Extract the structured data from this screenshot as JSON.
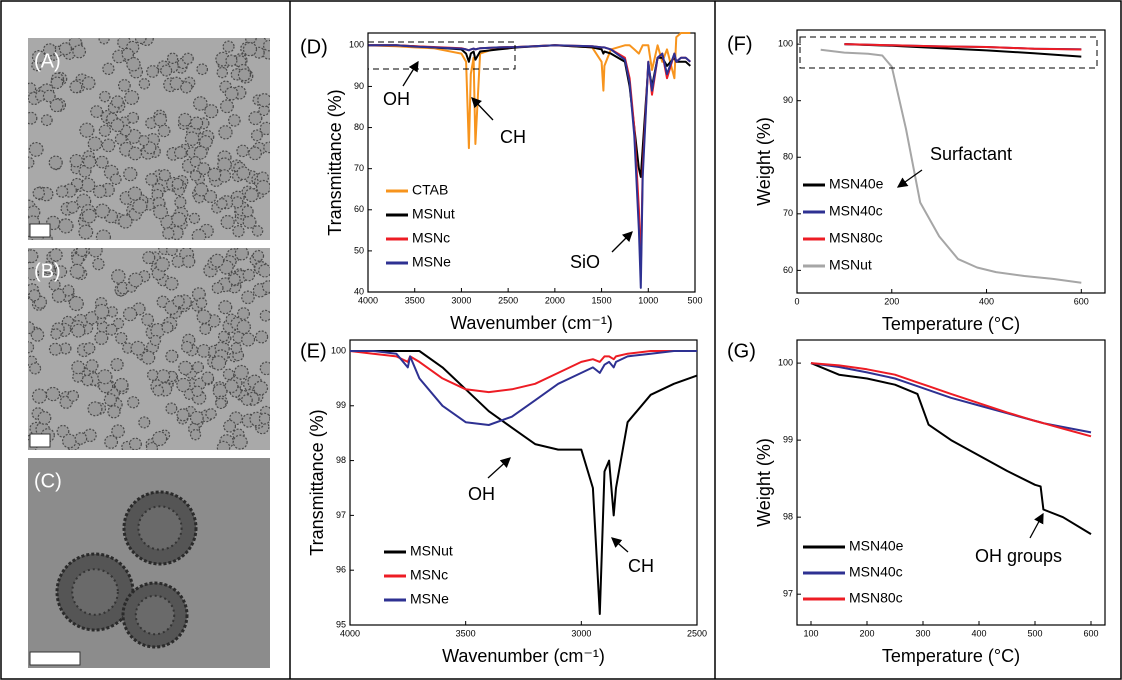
{
  "images": [
    {
      "label": "(A)"
    },
    {
      "label": "(B)"
    },
    {
      "label": "(C)"
    }
  ],
  "chart_data": [
    {
      "type": "line",
      "panel": "(D)",
      "xlabel": "Wavenumber (cm⁻¹)",
      "ylabel": "Transmittance (%)",
      "xlim": [
        4000,
        500
      ],
      "ylim": [
        40,
        103
      ],
      "xticks": [
        4000,
        3500,
        3000,
        2500,
        2000,
        1500,
        1000,
        500
      ],
      "yticks": [
        40,
        50,
        60,
        70,
        80,
        90,
        100
      ],
      "annotations": [
        "OH",
        "CH",
        "SiO"
      ],
      "x": [
        4000,
        3700,
        3500,
        3300,
        3000,
        2950,
        2920,
        2900,
        2870,
        2850,
        2800,
        2600,
        2400,
        2000,
        1600,
        1500,
        1480,
        1470,
        1400,
        1250,
        1200,
        1150,
        1100,
        1080,
        1060,
        1000,
        960,
        900,
        850,
        800,
        720,
        700,
        650,
        600,
        550
      ],
      "series": [
        {
          "name": "CTAB",
          "color": "#f7941d",
          "values": [
            100,
            99.8,
            99.5,
            99.3,
            98,
            96,
            75,
            93,
            97,
            76,
            98,
            99.5,
            99.6,
            100,
            99.5,
            96,
            89,
            95,
            99,
            100,
            100,
            99,
            98,
            99,
            100,
            100,
            94,
            100,
            96,
            99,
            92,
            102,
            103,
            103,
            103
          ]
        },
        {
          "name": "MSNut",
          "color": "#000000",
          "values": [
            100,
            100,
            99.8,
            99.5,
            99,
            98,
            96,
            98,
            98.5,
            96.5,
            98.5,
            99,
            99.5,
            100,
            99.5,
            99,
            98,
            98.5,
            98,
            96,
            90,
            80,
            70,
            68,
            75,
            95,
            90,
            97,
            97,
            95,
            97,
            96,
            96,
            96,
            95
          ]
        },
        {
          "name": "MSNc",
          "color": "#ed1c24",
          "values": [
            100,
            100,
            99.8,
            99.6,
            99.3,
            99,
            98.8,
            99,
            99.2,
            99,
            99.3,
            99.5,
            99.6,
            100,
            99.8,
            99.5,
            99.5,
            99.5,
            99,
            97,
            92,
            80,
            60,
            45,
            70,
            96,
            88,
            97,
            98,
            92,
            98,
            96,
            97,
            97,
            96
          ]
        },
        {
          "name": "MSNe",
          "color": "#2e3192",
          "values": [
            100,
            100,
            99.7,
            99.5,
            99.2,
            99,
            98.8,
            99,
            99.2,
            99,
            99.3,
            99.5,
            99.6,
            100,
            99.8,
            99.5,
            99.5,
            99.5,
            99,
            96.5,
            91,
            78,
            55,
            41,
            68,
            96,
            89,
            97,
            98,
            93,
            98,
            96,
            97,
            97,
            96
          ]
        }
      ]
    },
    {
      "type": "line",
      "panel": "(E)",
      "xlabel": "Wavenumber (cm⁻¹)",
      "ylabel": "Transmittance (%)",
      "xlim": [
        4000,
        2500
      ],
      "ylim": [
        95,
        100.2
      ],
      "xticks": [
        4000,
        3500,
        3000,
        2500
      ],
      "yticks": [
        95,
        96,
        97,
        98,
        99,
        100
      ],
      "annotations": [
        "OH",
        "CH"
      ],
      "x": [
        4000,
        3900,
        3800,
        3750,
        3740,
        3700,
        3600,
        3500,
        3400,
        3300,
        3200,
        3100,
        3000,
        2950,
        2920,
        2900,
        2880,
        2860,
        2850,
        2800,
        2700,
        2600,
        2500
      ],
      "series": [
        {
          "name": "MSNut",
          "color": "#000000",
          "values": [
            100,
            100,
            100,
            100,
            100,
            100,
            99.7,
            99.3,
            98.9,
            98.6,
            98.3,
            98.2,
            98.2,
            97.5,
            95.2,
            97.8,
            98.0,
            97.0,
            97.5,
            98.7,
            99.2,
            99.4,
            99.55
          ]
        },
        {
          "name": "MSNc",
          "color": "#ed1c24",
          "values": [
            100,
            99.95,
            99.9,
            99.8,
            99.9,
            99.8,
            99.5,
            99.3,
            99.25,
            99.3,
            99.4,
            99.6,
            99.8,
            99.85,
            99.8,
            99.9,
            99.9,
            99.85,
            99.9,
            99.95,
            100,
            100,
            100
          ]
        },
        {
          "name": "MSNe",
          "color": "#2e3192",
          "values": [
            100,
            100,
            99.95,
            99.7,
            99.9,
            99.5,
            99.0,
            98.7,
            98.65,
            98.8,
            99.1,
            99.4,
            99.6,
            99.7,
            99.6,
            99.75,
            99.8,
            99.7,
            99.8,
            99.9,
            99.95,
            100,
            100
          ]
        }
      ]
    },
    {
      "type": "line",
      "panel": "(F)",
      "xlabel": "Temperature (°C)",
      "ylabel": "Weight (%)",
      "xlim": [
        0,
        650
      ],
      "ylim": [
        56,
        102.5
      ],
      "xticks": [
        0,
        200,
        400,
        600
      ],
      "yticks": [
        60,
        70,
        80,
        90,
        100
      ],
      "annotations": [
        "Surfactant"
      ],
      "series": [
        {
          "name": "MSN40e",
          "color": "#000000",
          "x": [
            100,
            200,
            300,
            400,
            500,
            600
          ],
          "values": [
            100,
            99.7,
            99.3,
            98.9,
            98.4,
            97.8
          ]
        },
        {
          "name": "MSN40c",
          "color": "#2e3192",
          "x": [
            100,
            200,
            300,
            400,
            500,
            600
          ],
          "values": [
            100,
            99.8,
            99.6,
            99.5,
            99.2,
            99.1
          ]
        },
        {
          "name": "MSN80c",
          "color": "#ed1c24",
          "x": [
            100,
            200,
            300,
            400,
            500,
            600
          ],
          "values": [
            100,
            99.8,
            99.6,
            99.5,
            99.2,
            99.05
          ]
        },
        {
          "name": "MSNut",
          "color": "#a6a6a6",
          "x": [
            50,
            100,
            150,
            180,
            200,
            230,
            260,
            300,
            340,
            380,
            420,
            480,
            540,
            600
          ],
          "values": [
            99,
            98.5,
            98.3,
            98,
            96,
            85,
            72,
            66,
            62,
            60.5,
            59.7,
            59,
            58.5,
            57.8
          ]
        }
      ]
    },
    {
      "type": "line",
      "panel": "(G)",
      "xlabel": "Temperature (°C)",
      "ylabel": "Weight (%)",
      "xlim": [
        75,
        625
      ],
      "ylim": [
        96.6,
        100.3
      ],
      "xticks": [
        100,
        200,
        300,
        400,
        500,
        600
      ],
      "yticks": [
        97,
        98,
        99,
        100
      ],
      "annotations": [
        "OH groups"
      ],
      "x": [
        100,
        150,
        200,
        250,
        290,
        310,
        350,
        400,
        450,
        500,
        510,
        515,
        550,
        600
      ],
      "series": [
        {
          "name": "MSN40e",
          "color": "#000000",
          "values": [
            100,
            99.85,
            99.8,
            99.72,
            99.6,
            99.2,
            99.0,
            98.8,
            98.6,
            98.42,
            98.4,
            98.1,
            98.0,
            97.78
          ]
        },
        {
          "name": "MSN40c",
          "color": "#2e3192",
          "values": [
            100,
            99.95,
            99.88,
            99.8,
            99.7,
            99.65,
            99.55,
            99.45,
            99.35,
            99.25,
            99.23,
            99.22,
            99.17,
            99.1
          ]
        },
        {
          "name": "MSN80c",
          "color": "#ed1c24",
          "values": [
            100,
            99.97,
            99.92,
            99.85,
            99.75,
            99.7,
            99.6,
            99.48,
            99.36,
            99.25,
            99.23,
            99.22,
            99.15,
            99.05
          ]
        }
      ]
    }
  ]
}
